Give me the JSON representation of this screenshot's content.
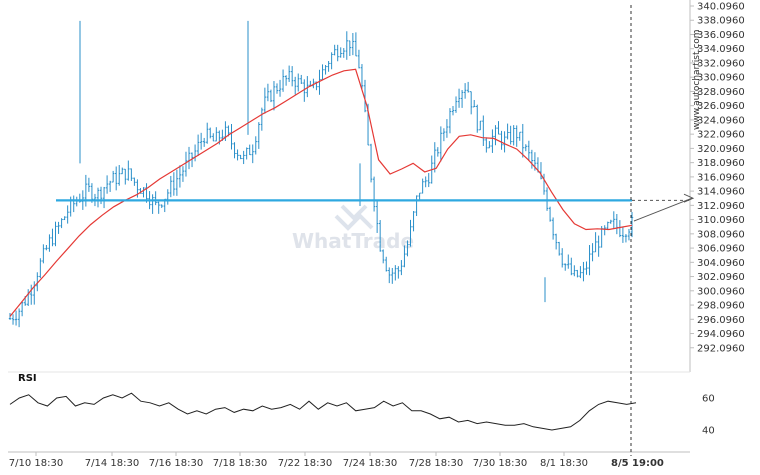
{
  "chart_data": {
    "type": "candlestick",
    "title": "",
    "side_credit": "www.autochartist.com",
    "watermark": "WhatTrade",
    "ylim": [
      290.096,
      340.096
    ],
    "y_ticks": [
      "340.0960",
      "338.0960",
      "336.0960",
      "334.0960",
      "332.0960",
      "330.0960",
      "328.0960",
      "326.0960",
      "324.0960",
      "322.0960",
      "320.0960",
      "318.0960",
      "316.0960",
      "314.0960",
      "312.0960",
      "310.0960",
      "308.0960",
      "306.0960",
      "304.0960",
      "302.0960",
      "300.0960",
      "298.0960",
      "296.0960",
      "294.0960",
      "292.0960"
    ],
    "x_ticks": [
      "7/10 18:30",
      "7/14 18:30",
      "7/16 18:30",
      "7/18 18:30",
      "7/22 18:30",
      "7/24 18:30",
      "7/28 18:30",
      "7/30 18:30",
      "8/1 18:30"
    ],
    "x_current_label": "8/5 19:00",
    "level": 312.8,
    "projection": {
      "from": 309.9,
      "to": 313.1
    },
    "close_track": [
      296.2,
      297.5,
      299.8,
      303.5,
      306.8,
      309.0,
      311.5,
      313.0,
      314.3,
      313.6,
      315.2,
      316.0,
      316.8,
      315.0,
      314.0,
      312.0,
      313.5,
      315.5,
      317.5,
      319.5,
      322.0,
      321.0,
      322.5,
      320.5,
      318.5,
      320.5,
      326.0,
      328.0,
      329.5,
      330.0,
      329.0,
      328.0,
      330.5,
      333.0,
      334.5,
      335.0,
      331.5,
      318.0,
      307.0,
      302.5,
      303.0,
      307.0,
      314.0,
      316.0,
      320.0,
      324.0,
      328.0,
      329.0,
      324.0,
      321.0,
      322.0,
      321.0,
      322.5,
      320.0,
      317.5,
      314.0,
      308.0,
      304.0,
      302.0,
      302.5,
      306.0,
      308.0,
      309.5,
      308.5,
      309.5
    ],
    "ma_track": [
      296.5,
      298.5,
      300.5,
      302.3,
      304.2,
      306.0,
      307.8,
      309.4,
      310.7,
      311.9,
      312.8,
      313.6,
      314.6,
      315.8,
      316.8,
      317.8,
      318.8,
      319.8,
      320.8,
      322.0,
      323.0,
      324.0,
      325.0,
      325.8,
      326.8,
      327.8,
      328.8,
      329.6,
      330.4,
      331.0,
      331.2,
      326.0,
      318.5,
      316.5,
      317.2,
      318.0,
      316.8,
      317.3,
      320.0,
      321.8,
      322.0,
      321.6,
      321.5,
      320.7,
      320.0,
      318.5,
      316.7,
      314.0,
      311.5,
      309.5,
      308.7,
      308.8,
      308.7,
      309.0,
      309.3
    ],
    "rsi": {
      "title": "RSI",
      "ticks": [
        "60",
        "40"
      ],
      "values": [
        56,
        60,
        62,
        57,
        55,
        60,
        61,
        55,
        57,
        56,
        60,
        62,
        60,
        63,
        58,
        57,
        55,
        57,
        53,
        50,
        52,
        50,
        53,
        54,
        51,
        53,
        52,
        55,
        53,
        54,
        56,
        53,
        58,
        53,
        57,
        55,
        57,
        52,
        53,
        54,
        58,
        55,
        57,
        52,
        52,
        50,
        47,
        48,
        45,
        46,
        44,
        45,
        44,
        43,
        43,
        44,
        42,
        41,
        40,
        41,
        42,
        46,
        52,
        56,
        58,
        57,
        56,
        57
      ]
    }
  }
}
